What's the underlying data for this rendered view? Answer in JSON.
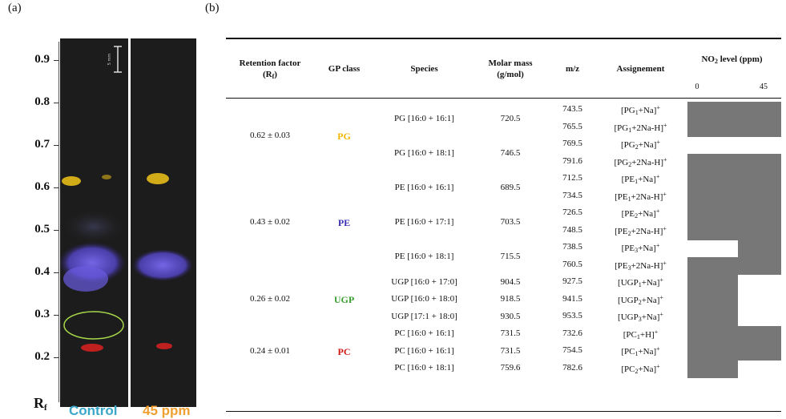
{
  "panel_a": {
    "label": "(a)",
    "y_axis_label": "R",
    "y_axis_label_sub": "f",
    "y_ticks": [
      "0.9",
      "0.8",
      "0.7",
      "0.6",
      "0.5",
      "0.4",
      "0.3",
      "0.2"
    ],
    "scale_bar_label": "5 mm",
    "legend_control": "Control",
    "legend_45": "45 ppm",
    "colors": {
      "control": "#3aa7c9",
      "ppm45": "#f0a030",
      "pg": "#f2c518",
      "pe": "#6a5be0",
      "pc": "#d02020",
      "circle": "#a8d84a"
    }
  },
  "panel_b": {
    "label": "(b)",
    "headers": {
      "rf": "Retention factor",
      "rf2a": "(R",
      "rf2sub": "f",
      "rf2b": ")",
      "gp": "GP class",
      "species": "Species",
      "molar": "Molar mass",
      "molar_unit": "(g/mol)",
      "mz": "m/z",
      "assign": "Assignement",
      "no2a": "NO",
      "no2sub": "2",
      "no2b": " level (ppm)",
      "lvl0": "0",
      "lvl45": "45"
    },
    "groups": [
      {
        "rf": "0.62 ± 0.03",
        "gp": "PG",
        "color": "#f2b600"
      },
      {
        "rf": "0.43 ± 0.02",
        "gp": "PE",
        "color": "#3a2fb0"
      },
      {
        "rf": "0.26 ± 0.02",
        "gp": "UGP",
        "color": "#3aa030"
      },
      {
        "rf": "0.24 ± 0.01",
        "gp": "PC",
        "color": "#d01515"
      }
    ],
    "species": [
      {
        "name": "PG [16:0 + 16:1]",
        "mass": "720.5"
      },
      {
        "name": "PG [16:0 + 18:1]",
        "mass": "746.5"
      },
      {
        "name": "PE [16:0 + 16:1]",
        "mass": "689.5"
      },
      {
        "name": "PE [16:0 + 17:1]",
        "mass": "703.5"
      },
      {
        "name": "PE [16:0 + 18:1]",
        "mass": "715.5"
      },
      {
        "name": "UGP [16:0 + 17:0]",
        "mass": "904.5"
      },
      {
        "name": "UGP [16:0 + 18:0]",
        "mass": "918.5"
      },
      {
        "name": "UGP [17:1 + 18:0]",
        "mass": "930.5"
      },
      {
        "name": "PC [16:0 + 16:1]",
        "mass": "731.5"
      },
      {
        "name": "PC [16:0 + 16:1]",
        "mass": "731.5"
      },
      {
        "name": "PC [16:0 + 18:1]",
        "mass": "759.6"
      }
    ],
    "ions": [
      {
        "mz": "743.5",
        "a": "[PG",
        "s": "1",
        "b": "+Na]",
        "p": "+",
        "lvl0": true,
        "lvl45": true
      },
      {
        "mz": "765.5",
        "a": "[PG",
        "s": "1",
        "b": "+2Na-H]",
        "p": "+",
        "lvl0": true,
        "lvl45": true
      },
      {
        "mz": "769.5",
        "a": "[PG",
        "s": "2",
        "b": "+Na]",
        "p": "+",
        "lvl0": false,
        "lvl45": false
      },
      {
        "mz": "791.6",
        "a": "[PG",
        "s": "2",
        "b": "+2Na-H]",
        "p": "+",
        "lvl0": true,
        "lvl45": true
      },
      {
        "mz": "712.5",
        "a": "[PE",
        "s": "1",
        "b": "+Na]",
        "p": "+",
        "lvl0": true,
        "lvl45": true
      },
      {
        "mz": "734.5",
        "a": "[PE",
        "s": "1",
        "b": "+2Na-H]",
        "p": "+",
        "lvl0": true,
        "lvl45": true
      },
      {
        "mz": "726.5",
        "a": "[PE",
        "s": "2",
        "b": "+Na]",
        "p": "+",
        "lvl0": true,
        "lvl45": true
      },
      {
        "mz": "748.5",
        "a": "[PE",
        "s": "2",
        "b": "+2Na-H]",
        "p": "+",
        "lvl0": true,
        "lvl45": true
      },
      {
        "mz": "738.5",
        "a": "[PE",
        "s": "3",
        "b": "+Na]",
        "p": "+",
        "lvl0": false,
        "lvl45": true
      },
      {
        "mz": "760.5",
        "a": "[PE",
        "s": "3",
        "b": "+2Na-H]",
        "p": "+",
        "lvl0": true,
        "lvl45": true
      },
      {
        "mz": "927.5",
        "a": "[UGP",
        "s": "1",
        "b": "+Na]",
        "p": "+",
        "lvl0": true,
        "lvl45": false
      },
      {
        "mz": "941.5",
        "a": "[UGP",
        "s": "2",
        "b": "+Na]",
        "p": "+",
        "lvl0": true,
        "lvl45": false
      },
      {
        "mz": "953.5",
        "a": "[UGP",
        "s": "3",
        "b": "+Na]",
        "p": "+",
        "lvl0": true,
        "lvl45": false
      },
      {
        "mz": "732.6",
        "a": "[PC",
        "s": "1",
        "b": "+H]",
        "p": "+",
        "lvl0": true,
        "lvl45": true
      },
      {
        "mz": "754.5",
        "a": "[PC",
        "s": "1",
        "b": "+Na]",
        "p": "+",
        "lvl0": true,
        "lvl45": true
      },
      {
        "mz": "782.6",
        "a": "[PC",
        "s": "2",
        "b": "+Na]",
        "p": "+",
        "lvl0": true,
        "lvl45": false
      }
    ]
  }
}
